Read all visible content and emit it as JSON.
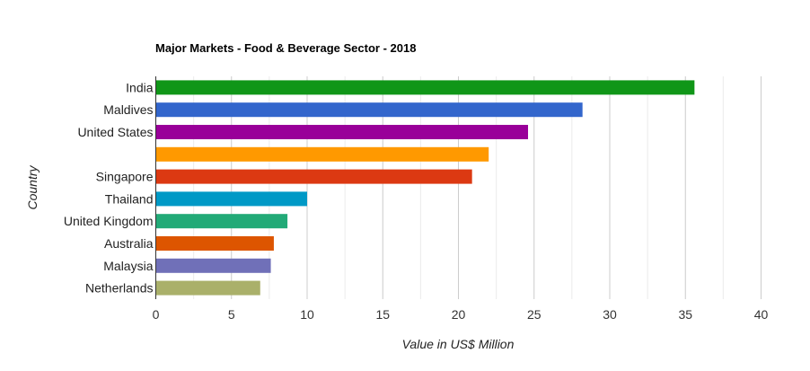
{
  "chart_data": {
    "type": "bar",
    "orientation": "horizontal",
    "title": "Major Markets - Food & Beverage Sector - 2018",
    "xlabel": "Value in US$ Million",
    "ylabel": "Country",
    "xlim": [
      0,
      40
    ],
    "x_ticks": [
      "0",
      "5",
      "10",
      "15",
      "20",
      "25",
      "30",
      "35",
      "40"
    ],
    "grid": true,
    "legend": "none",
    "categories": [
      "India",
      "Maldives",
      "United States",
      "",
      "Singapore",
      "Thailand",
      "United Kingdom",
      "Australia",
      "Malaysia",
      "Netherlands"
    ],
    "values": [
      35.6,
      28.2,
      24.6,
      22.0,
      20.9,
      10.0,
      8.7,
      7.8,
      7.6,
      6.9
    ],
    "colors": [
      "#109618",
      "#3366cc",
      "#990099",
      "#ff9900",
      "#dc3912",
      "#0099c6",
      "#22aa77",
      "#dd5500",
      "#7070b8",
      "#aab06a"
    ]
  }
}
